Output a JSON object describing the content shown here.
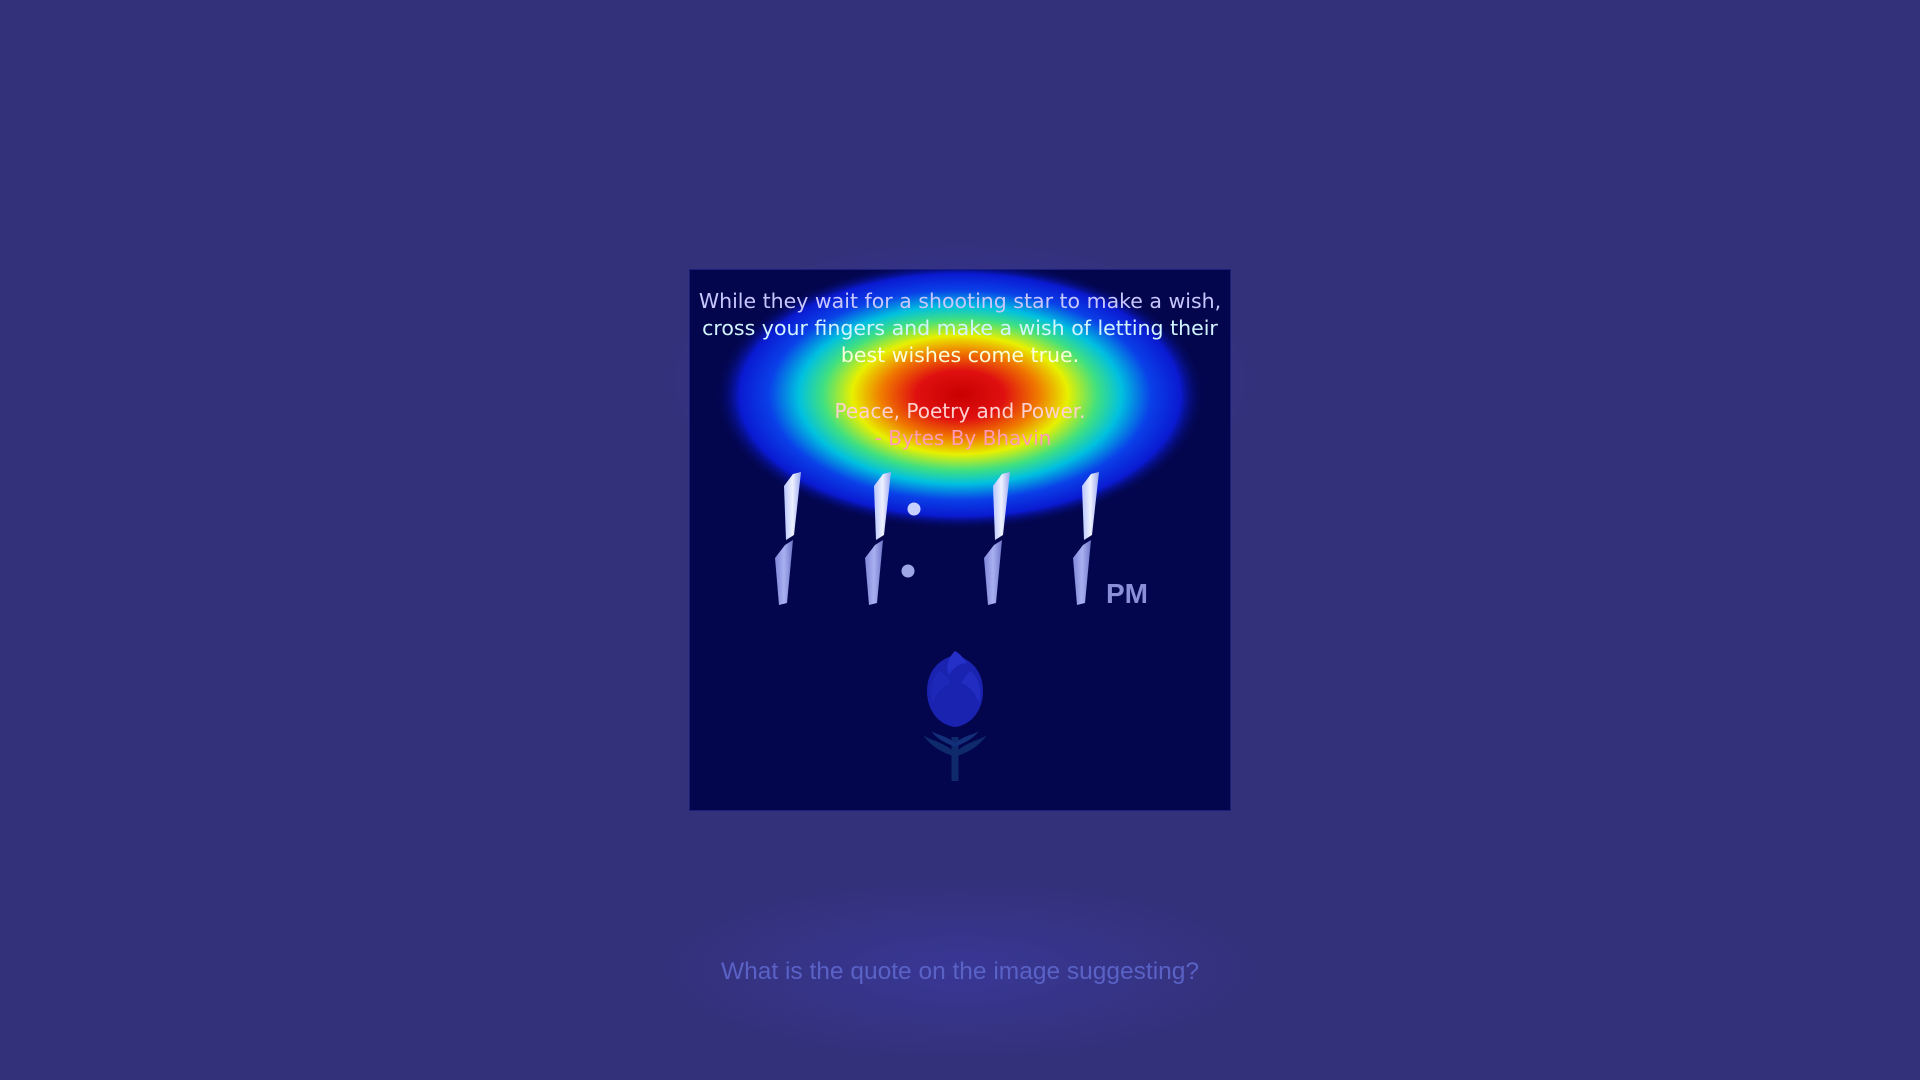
{
  "quote": {
    "lines": [
      "While they wait for a shooting star to make a wish,",
      "cross your fingers and make a wish of letting their",
      "best wishes come true."
    ]
  },
  "signature": {
    "lines": [
      "Peace, Poetry and Power.",
      "- Bytes By Bhavin"
    ]
  },
  "clock": {
    "time": "11:11",
    "meridiem": "PM"
  },
  "question": "What is the quote on the image suggesting?",
  "icons": {
    "flower": "rose-icon"
  },
  "colors": {
    "background": "#34317b",
    "card": "#03064d",
    "heat_hot": "#e0001a",
    "heat_cool": "#0a1ad8"
  }
}
